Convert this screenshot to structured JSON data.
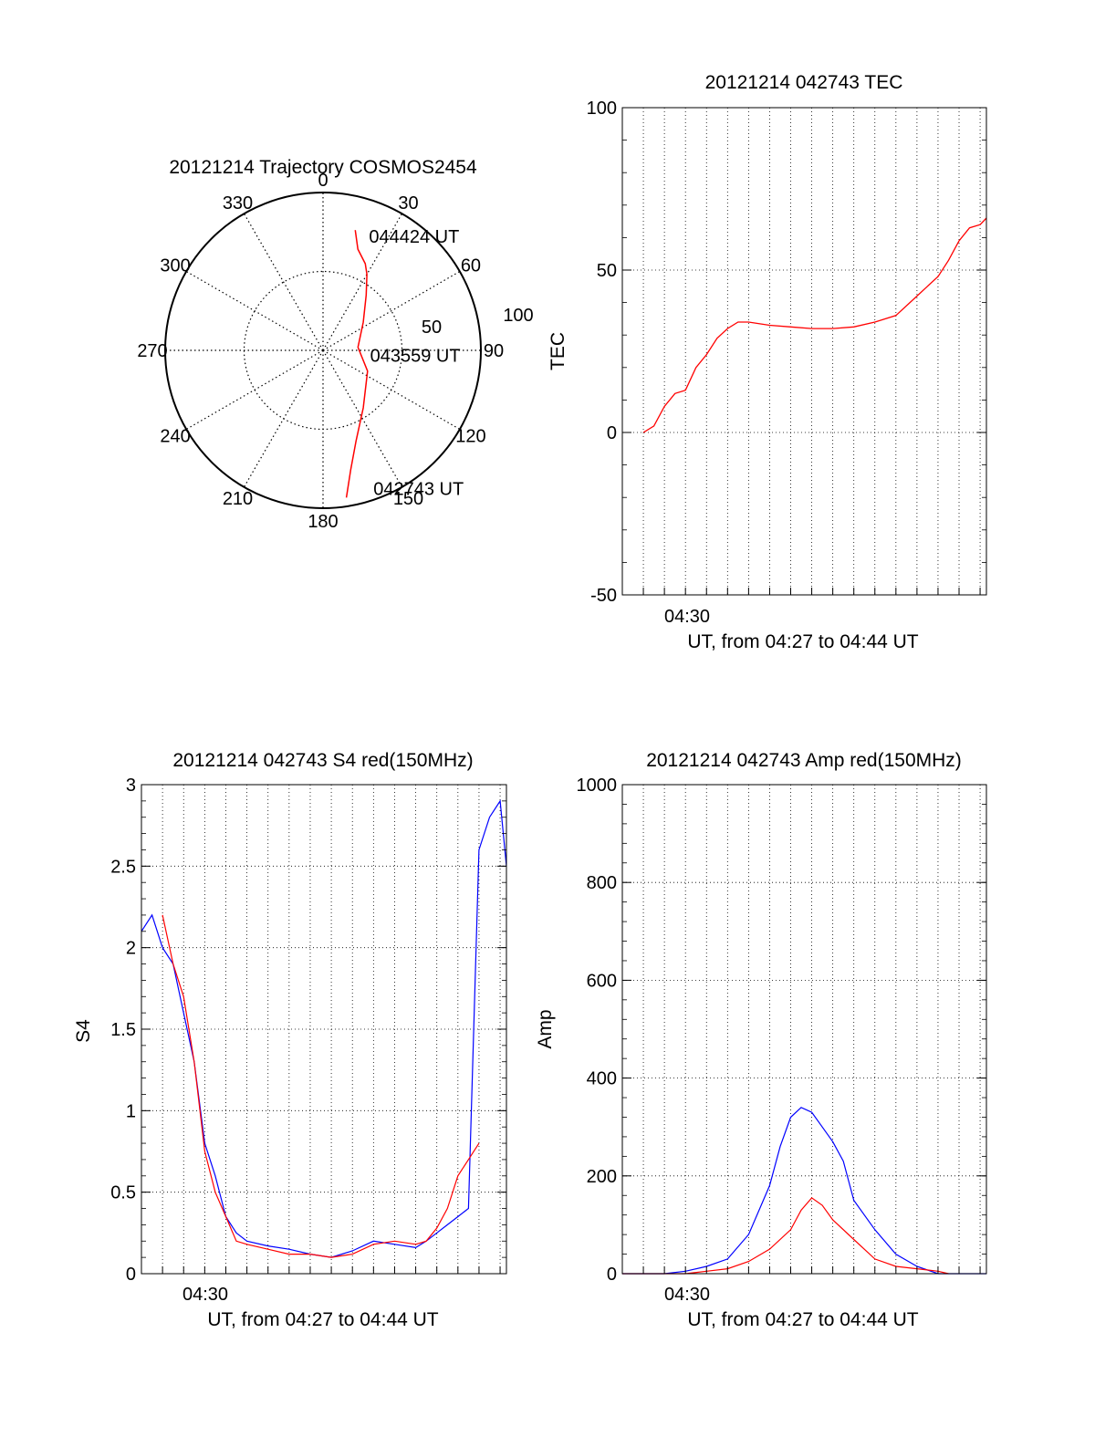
{
  "chart_data": [
    {
      "type": "polar-trajectory",
      "title": "20121214 Trajectory COSMOS2454",
      "angle_labels": [
        "0",
        "30",
        "60",
        "90",
        "120",
        "150",
        "180",
        "210",
        "240",
        "270",
        "300",
        "330"
      ],
      "radius_labels": [
        "50",
        "100"
      ],
      "track_color": "#ff0000",
      "points_elev_az": [
        [
          5,
          171
        ],
        [
          20,
          167
        ],
        [
          35,
          160
        ],
        [
          50,
          145
        ],
        [
          62,
          115
        ],
        [
          70,
          85
        ],
        [
          62,
          55
        ],
        [
          50,
          38
        ],
        [
          40,
          30
        ],
        [
          35,
          26
        ],
        [
          29,
          19
        ],
        [
          19,
          15
        ]
      ],
      "annotations": [
        {
          "text": "044424 UT",
          "azimuth": 22,
          "elevation": 20
        },
        {
          "text": "043559 UT",
          "azimuth": 96,
          "elevation": 63
        },
        {
          "text": "042743 UT",
          "azimuth": 160,
          "elevation": 6
        }
      ]
    },
    {
      "type": "line",
      "title": "20121214 042743 TEC",
      "xlabel": "UT, from 04:27 to 04:44 UT",
      "ylabel": "TEC",
      "xlim": [
        27.0,
        44.3
      ],
      "xtick_label": "04:30",
      "ylim": [
        -50,
        100
      ],
      "yticks": [
        -50,
        0,
        50,
        100
      ],
      "grid": true,
      "series": [
        {
          "color": "#ff0000",
          "x": [
            28.0,
            28.5,
            29.0,
            29.5,
            30.0,
            30.5,
            31.0,
            31.5,
            32.0,
            32.5,
            33.0,
            34.0,
            35.0,
            36.0,
            37.0,
            38.0,
            39.0,
            40.0,
            41.0,
            41.5,
            42.0,
            42.5,
            43.0,
            43.5,
            44.0,
            44.3
          ],
          "y": [
            0,
            2,
            8,
            12,
            13,
            20,
            24,
            29,
            32,
            34,
            34,
            33,
            32.5,
            32,
            32,
            32.5,
            34,
            36,
            42,
            45,
            48,
            53,
            59,
            63,
            64,
            66
          ]
        }
      ]
    },
    {
      "type": "line",
      "title": "20121214 042743 S4 red(150MHz)",
      "xlabel": "UT, from 04:27 to 04:44 UT",
      "ylabel": "S4",
      "xlim": [
        27.0,
        44.3
      ],
      "xtick_label": "04:30",
      "ylim": [
        0,
        3
      ],
      "yticks": [
        0,
        0.5,
        1,
        1.5,
        2,
        2.5,
        3
      ],
      "grid": true,
      "series": [
        {
          "color": "#0000ff",
          "x": [
            27.0,
            27.5,
            28.0,
            28.5,
            29.0,
            29.5,
            30.0,
            30.5,
            31.0,
            31.5,
            32.0,
            33.0,
            34.0,
            35.0,
            36.0,
            37.0,
            38.0,
            39.0,
            40.0,
            40.5,
            41.0,
            41.5,
            42.0,
            42.5,
            43.0,
            43.5,
            44.0,
            44.3
          ],
          "y": [
            2.1,
            2.2,
            2.0,
            1.9,
            1.6,
            1.3,
            0.8,
            0.6,
            0.35,
            0.25,
            0.2,
            0.17,
            0.15,
            0.12,
            0.1,
            0.14,
            0.2,
            0.18,
            0.16,
            0.2,
            0.25,
            0.3,
            0.35,
            0.4,
            2.6,
            2.8,
            2.9,
            2.5
          ]
        },
        {
          "color": "#ff0000",
          "x": [
            28.0,
            28.5,
            29.0,
            29.5,
            30.0,
            30.5,
            31.0,
            31.5,
            32.0,
            33.0,
            34.0,
            35.0,
            36.0,
            37.0,
            38.0,
            39.0,
            40.0,
            40.5,
            41.0,
            41.5,
            42.0,
            42.5,
            43.0
          ],
          "y": [
            2.2,
            1.9,
            1.7,
            1.3,
            0.75,
            0.5,
            0.35,
            0.2,
            0.18,
            0.15,
            0.12,
            0.12,
            0.1,
            0.12,
            0.18,
            0.2,
            0.18,
            0.2,
            0.28,
            0.4,
            0.6,
            0.7,
            0.8
          ]
        }
      ]
    },
    {
      "type": "line",
      "title": "20121214 042743 Amp red(150MHz)",
      "xlabel": "UT, from 04:27 to 04:44 UT",
      "ylabel": "Amp",
      "xlim": [
        27.0,
        44.3
      ],
      "xtick_label": "04:30",
      "ylim": [
        0,
        1000
      ],
      "yticks": [
        0,
        200,
        400,
        600,
        800,
        1000
      ],
      "grid": true,
      "series": [
        {
          "color": "#0000ff",
          "x": [
            27.0,
            29.0,
            30.0,
            31.0,
            32.0,
            33.0,
            34.0,
            34.5,
            35.0,
            35.5,
            36.0,
            36.5,
            37.0,
            37.5,
            38.0,
            39.0,
            40.0,
            41.0,
            42.0,
            43.0,
            44.3
          ],
          "y": [
            0,
            0,
            5,
            15,
            30,
            80,
            180,
            260,
            320,
            340,
            330,
            300,
            270,
            230,
            150,
            90,
            40,
            15,
            0,
            0,
            0
          ]
        },
        {
          "color": "#ff0000",
          "x": [
            27.0,
            30.0,
            31.0,
            32.0,
            33.0,
            34.0,
            35.0,
            35.5,
            36.0,
            36.5,
            37.0,
            38.0,
            39.0,
            40.0,
            41.0,
            42.0,
            42.5
          ],
          "y": [
            0,
            0,
            5,
            10,
            25,
            50,
            90,
            130,
            155,
            140,
            110,
            70,
            30,
            15,
            10,
            5,
            0
          ]
        }
      ]
    }
  ]
}
